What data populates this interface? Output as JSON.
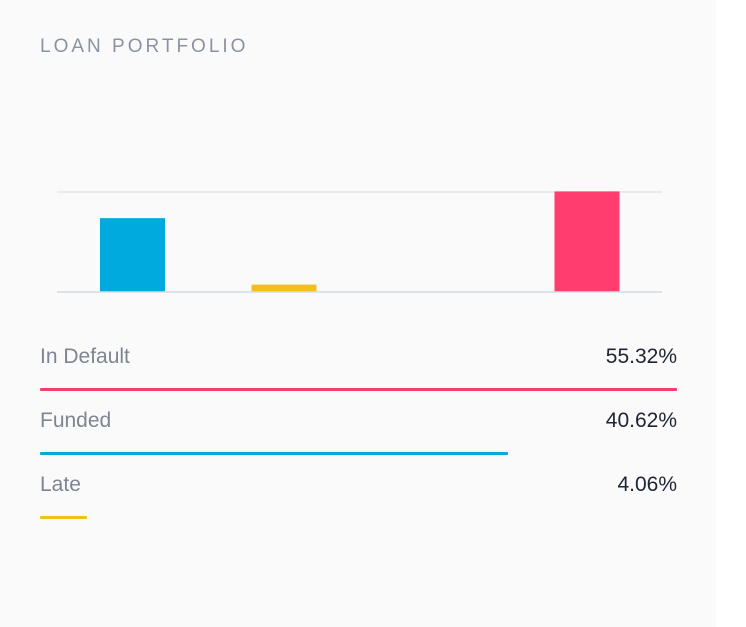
{
  "card": {
    "title": "LOAN PORTFOLIO"
  },
  "chart_data": {
    "type": "bar",
    "title": "LOAN PORTFOLIO",
    "categories": [
      "Funded",
      "Late",
      "",
      "In Default"
    ],
    "values": [
      40.62,
      4.06,
      0,
      55.32
    ],
    "colors": [
      "#00aadf",
      "#f6be1a",
      "#cccccc",
      "#ff3d6e"
    ],
    "ylim": [
      0,
      55
    ],
    "grid": true,
    "legend": "bottom"
  },
  "legend": {
    "max_value": 55.32,
    "items": [
      {
        "label": "In Default",
        "value": 55.32,
        "display": "55.32%",
        "color": "#f0406a"
      },
      {
        "label": "Funded",
        "value": 40.62,
        "display": "40.62%",
        "color": "#0ca7d9"
      },
      {
        "label": "Late",
        "value": 4.06,
        "display": "4.06%",
        "color": "#f6be1a"
      }
    ]
  }
}
